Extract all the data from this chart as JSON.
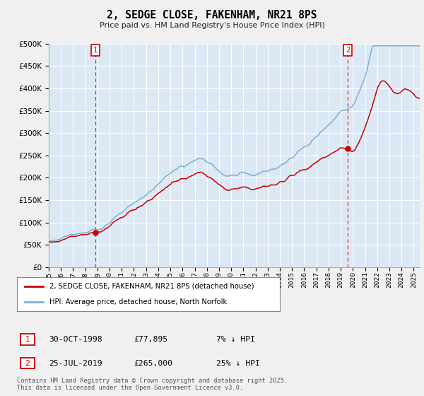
{
  "title": "2, SEDGE CLOSE, FAKENHAM, NR21 8PS",
  "subtitle": "Price paid vs. HM Land Registry's House Price Index (HPI)",
  "legend_label_red": "2, SEDGE CLOSE, FAKENHAM, NR21 8PS (detached house)",
  "legend_label_blue": "HPI: Average price, detached house, North Norfolk",
  "annotation1_date": "30-OCT-1998",
  "annotation1_price": "£77,895",
  "annotation1_hpi": "7% ↓ HPI",
  "annotation2_date": "25-JUL-2019",
  "annotation2_price": "£265,000",
  "annotation2_hpi": "25% ↓ HPI",
  "footer": "Contains HM Land Registry data © Crown copyright and database right 2025.\nThis data is licensed under the Open Government Licence v3.0.",
  "ylim": [
    0,
    500000
  ],
  "yticks": [
    0,
    50000,
    100000,
    150000,
    200000,
    250000,
    300000,
    350000,
    400000,
    450000,
    500000
  ],
  "red_color": "#cc0000",
  "blue_color": "#7ab0d4",
  "dashed_color": "#cc0000",
  "background_color": "#f0f0f0",
  "plot_bg_color": "#dce9f5",
  "grid_color": "#ffffff",
  "t1": 1998.833,
  "t2": 2019.583,
  "price1": 77895,
  "price2": 265000,
  "xmin": 1995,
  "xmax": 2025.5
}
